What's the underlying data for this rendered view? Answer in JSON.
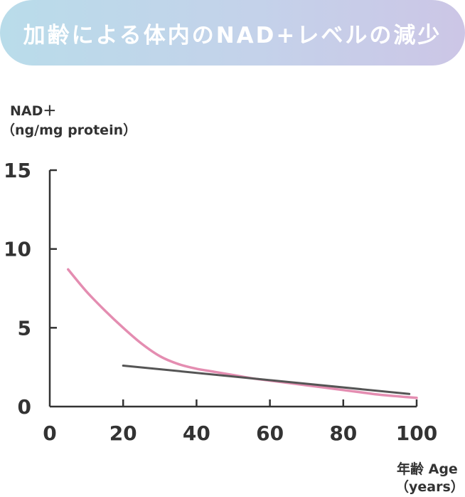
{
  "title": "加齢による体内のNAD+レベルの減少",
  "chart_data": {
    "type": "line",
    "title": "加齢による体内のNAD+レベルの減少",
    "ylabel_line1": "NAD＋",
    "ylabel_line2": "（ng/mg protein）",
    "xlabel_line1": "年齢 Age",
    "xlabel_line2": "（years）",
    "xlim": [
      0,
      100
    ],
    "ylim": [
      0,
      15
    ],
    "x_ticks": [
      0,
      20,
      40,
      60,
      80,
      100
    ],
    "y_ticks": [
      0,
      5,
      10,
      15
    ],
    "grid": false,
    "series": [
      {
        "color": "#e48db1",
        "x": [
          5,
          10,
          15,
          20,
          25,
          30,
          35,
          40,
          45,
          50,
          55,
          60,
          65,
          70,
          75,
          80,
          85,
          90,
          95,
          100
        ],
        "y": [
          8.7,
          7.3,
          6.1,
          5.0,
          4.0,
          3.2,
          2.7,
          2.4,
          2.2,
          2.0,
          1.8,
          1.65,
          1.5,
          1.35,
          1.2,
          1.05,
          0.9,
          0.75,
          0.65,
          0.55
        ]
      },
      {
        "color": "#555555",
        "x": [
          20,
          98
        ],
        "y": [
          2.6,
          0.8
        ]
      }
    ]
  }
}
